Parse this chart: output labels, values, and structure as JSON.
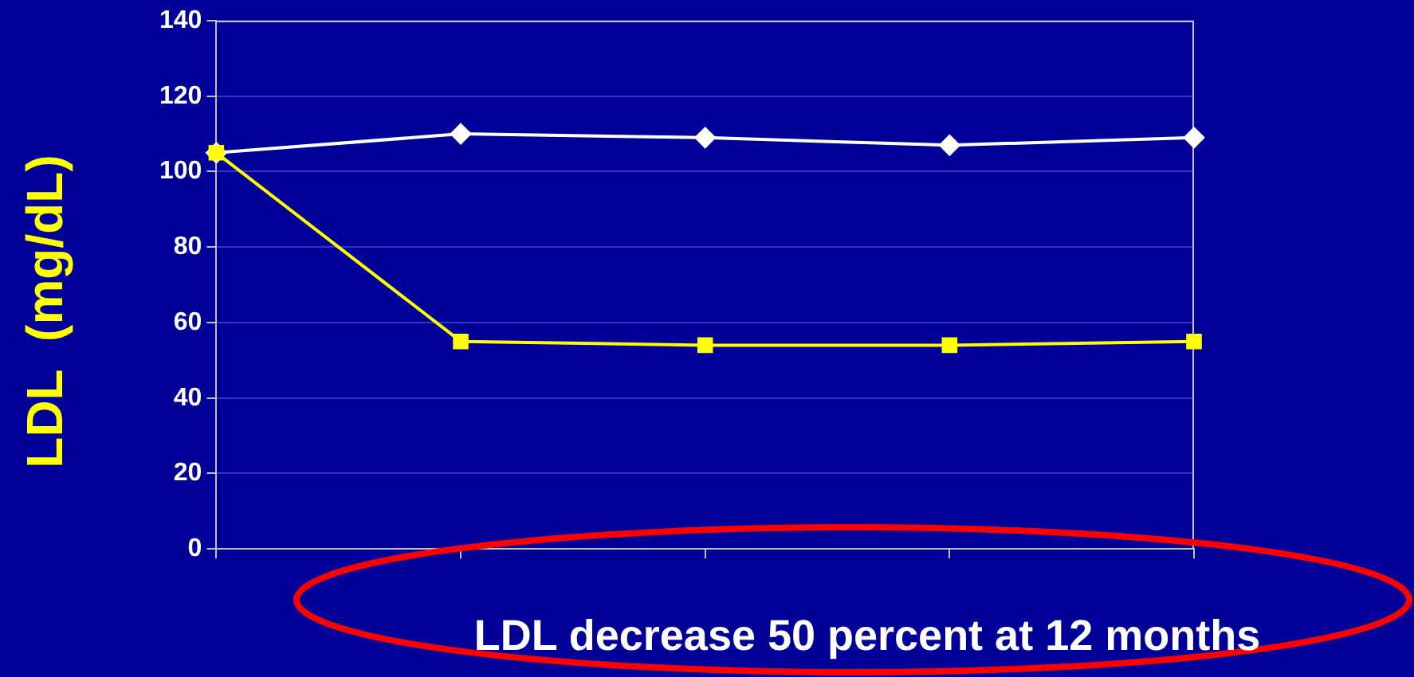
{
  "chart_data": {
    "type": "line",
    "ylabel": "LDL  (mg/dL)",
    "categories": [
      null,
      null,
      null,
      null,
      null
    ],
    "series": [
      {
        "color": "#ffffff",
        "marker": "diamond",
        "values": [
          105,
          110,
          109,
          107,
          109
        ]
      },
      {
        "color": "#ffff00",
        "marker": "square",
        "values": [
          105,
          55,
          54,
          54,
          55
        ]
      }
    ],
    "ylim": [
      0,
      140
    ],
    "yticks": [
      0,
      20,
      40,
      60,
      80,
      100,
      120,
      140
    ],
    "grid": "y",
    "legend": false,
    "line_style": "solid",
    "annotations": [
      "LDL decrease 50 percent at 12 months"
    ]
  }
}
